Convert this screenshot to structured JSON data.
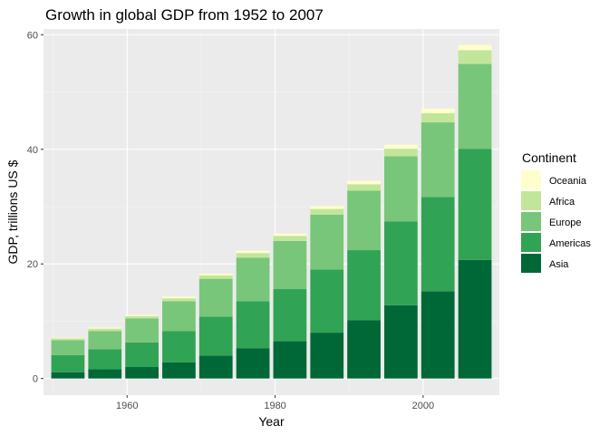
{
  "chart_data": {
    "type": "bar",
    "stacked": true,
    "title": "Growth in global GDP from 1952 to 2007",
    "xlabel": "Year",
    "ylabel": "GDP, trillions US $",
    "x": [
      1952,
      1957,
      1962,
      1967,
      1972,
      1977,
      1982,
      1987,
      1992,
      1997,
      2002,
      2007
    ],
    "xlim": [
      1948.7,
      2010.3
    ],
    "ylim": [
      -2.9,
      61
    ],
    "x_ticks": [
      1960,
      1980,
      2000
    ],
    "x_tick_labels": [
      "1960",
      "1980",
      "2000"
    ],
    "y_ticks": [
      0,
      20,
      40,
      60
    ],
    "y_tick_labels": [
      "0",
      "20",
      "40",
      "60"
    ],
    "grid": true,
    "legend": {
      "title": "Continent",
      "placement": "right"
    },
    "series": [
      {
        "name": "Asia",
        "color": "#006837",
        "values": [
          1.1,
          1.6,
          2.0,
          2.8,
          4.0,
          5.3,
          6.5,
          8.0,
          10.2,
          12.8,
          15.2,
          20.7
        ]
      },
      {
        "name": "Americas",
        "color": "#31A354",
        "values": [
          3.0,
          3.5,
          4.3,
          5.5,
          6.8,
          8.2,
          9.1,
          11.0,
          12.2,
          14.6,
          16.5,
          19.4
        ]
      },
      {
        "name": "Europe",
        "color": "#78C679",
        "values": [
          2.6,
          3.2,
          4.2,
          5.2,
          6.6,
          7.6,
          8.4,
          9.6,
          10.4,
          11.4,
          13.0,
          14.8
        ]
      },
      {
        "name": "Africa",
        "color": "#C2E699",
        "values": [
          0.3,
          0.4,
          0.4,
          0.5,
          0.6,
          0.8,
          0.9,
          1.0,
          1.1,
          1.3,
          1.6,
          2.4
        ]
      },
      {
        "name": "Oceania",
        "color": "#FFFFCC",
        "values": [
          0.1,
          0.2,
          0.2,
          0.3,
          0.3,
          0.4,
          0.4,
          0.5,
          0.6,
          0.7,
          0.8,
          0.9
        ]
      }
    ]
  }
}
